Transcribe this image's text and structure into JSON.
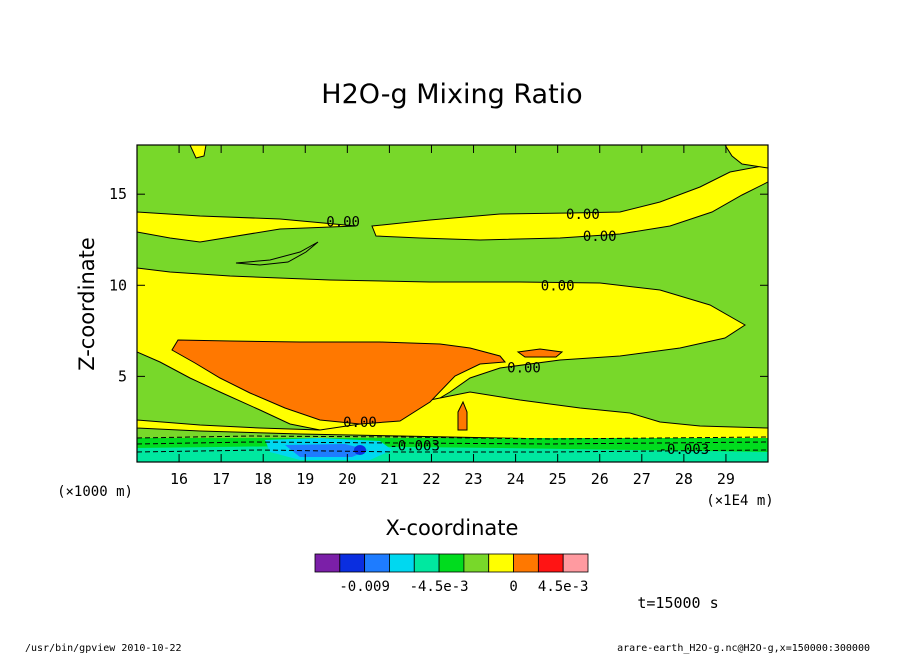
{
  "chart_data": {
    "type": "contour",
    "title": "H2O-g Mixing Ratio",
    "xlabel": "X-coordinate",
    "ylabel": "Z-coordinate",
    "x_unit_label": "(×1E4 m)",
    "y_unit_label": "(×1000 m)",
    "xlim": [
      15.0,
      30.0
    ],
    "ylim": [
      0.3,
      17.7
    ],
    "x_ticks": [
      "16",
      "17",
      "18",
      "19",
      "20",
      "21",
      "22",
      "23",
      "24",
      "25",
      "26",
      "27",
      "28",
      "29"
    ],
    "y_ticks": [
      "5",
      "10",
      "15"
    ],
    "contour_labels": [
      {
        "text": "0.00",
        "x": 19.9,
        "z": 13.5
      },
      {
        "text": "0.00",
        "x": 25.6,
        "z": 13.9
      },
      {
        "text": "0.00",
        "x": 26.0,
        "z": 12.7
      },
      {
        "text": "0.00",
        "x": 25.0,
        "z": 10.0
      },
      {
        "text": "0.00",
        "x": 24.2,
        "z": 5.5
      },
      {
        "text": "0.00",
        "x": 20.3,
        "z": 2.5
      },
      {
        "text": "-0.003",
        "x": 21.6,
        "z": 1.2
      },
      {
        "text": "-0.003",
        "x": 28.0,
        "z": 1.0
      }
    ],
    "colorbar": {
      "colors": [
        "#7b1fa8",
        "#0a2ee0",
        "#1e7cff",
        "#00d8f0",
        "#00e8a0",
        "#00dc1e",
        "#78d82a",
        "#ffff00",
        "#ff7800",
        "#ff1414",
        "#ff9aa0"
      ],
      "tick_labels": [
        "-0.009",
        "-4.5e-3",
        "0",
        "4.5e-3"
      ]
    },
    "time_label": "t=15000 s",
    "footer_left": "/usr/bin/gpview   2010-10-22",
    "footer_right": "arare-earth_H2O-g.nc@H2O-g,x=150000:300000"
  }
}
